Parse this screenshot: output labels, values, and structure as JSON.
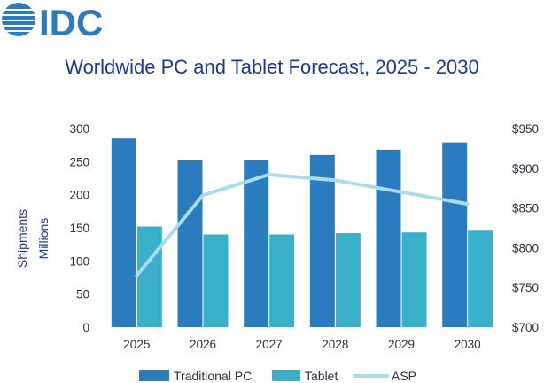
{
  "logo": {
    "text": "IDC"
  },
  "chart_data": {
    "type": "bar",
    "title": "Worldwide PC and Tablet Forecast, 2025 - 2030",
    "categories": [
      "2025",
      "2026",
      "2027",
      "2028",
      "2029",
      "2030"
    ],
    "series": [
      {
        "name": "Traditional PC",
        "kind": "bar",
        "axis": "left",
        "values": [
          285,
          252,
          252,
          260,
          268,
          279
        ]
      },
      {
        "name": "Tablet",
        "kind": "bar",
        "axis": "left",
        "values": [
          152,
          140,
          140,
          142,
          143,
          147
        ]
      },
      {
        "name": "ASP",
        "kind": "line",
        "axis": "right",
        "values": [
          765,
          866,
          892,
          885,
          870,
          855
        ]
      }
    ],
    "ylabel_left": [
      "Shipments",
      "Millions"
    ],
    "ylim_left": [
      0,
      300
    ],
    "yticks_left": [
      "0",
      "50",
      "100",
      "150",
      "200",
      "250",
      "300"
    ],
    "ylim_right": [
      700,
      950
    ],
    "yticks_right": [
      "$700",
      "$750",
      "$800",
      "$850",
      "$900",
      "$950"
    ],
    "grid": false,
    "legend_position": "bottom",
    "colors": {
      "Traditional PC": "#2b7bbf",
      "Tablet": "#3aafc9",
      "ASP": "#a9dcea",
      "title": "#1b3a8c",
      "logo": "#2b7bbf"
    }
  }
}
